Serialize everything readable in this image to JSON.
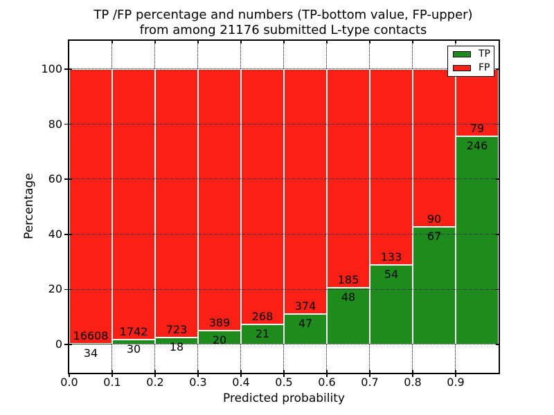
{
  "chart_data": {
    "type": "bar",
    "stacked": true,
    "title": "TP /FP percentage and numbers (TP-bottom value, FP-upper) from among 21176 submitted L-type contacts",
    "title_lines": [
      "TP /FP percentage and numbers (TP-bottom value, FP-upper)",
      "from among 21176 submitted L-type contacts"
    ],
    "xlabel": "Predicted probability",
    "ylabel": "Percentage",
    "total_contacts": 21176,
    "bin_width": 0.1,
    "bin_starts": [
      0.0,
      0.1,
      0.2,
      0.3,
      0.4,
      0.5,
      0.6,
      0.7,
      0.8,
      0.9
    ],
    "x_tick_labels": [
      "0.0",
      "0.1",
      "0.2",
      "0.3",
      "0.4",
      "0.5",
      "0.6",
      "0.7",
      "0.8",
      "0.9"
    ],
    "y_ticks": [
      0,
      20,
      40,
      60,
      80,
      100
    ],
    "y_tick_labels": [
      "0",
      "20",
      "40",
      "60",
      "80",
      "100"
    ],
    "ylim_pct": [
      -10.33,
      110.33
    ],
    "xlim": [
      0.0,
      1.0
    ],
    "grid_style": "dotted",
    "series": [
      {
        "name": "TP",
        "color": "#1d8c1d",
        "counts": [
          34,
          30,
          18,
          20,
          21,
          47,
          48,
          54,
          67,
          246
        ],
        "percentages": [
          0.2,
          1.69,
          2.43,
          4.89,
          7.27,
          11.16,
          20.6,
          28.88,
          42.68,
          75.69
        ]
      },
      {
        "name": "FP",
        "color": "#fb2016",
        "counts": [
          16608,
          1742,
          723,
          389,
          268,
          374,
          185,
          133,
          90,
          79
        ],
        "percentages": [
          99.8,
          98.31,
          97.57,
          95.11,
          92.73,
          88.84,
          79.4,
          71.12,
          57.32,
          24.31
        ]
      }
    ],
    "legend": {
      "position": "upper right",
      "entries": [
        {
          "label": "TP",
          "color": "#1d8c1d"
        },
        {
          "label": "FP",
          "color": "#fb2016"
        }
      ]
    }
  }
}
